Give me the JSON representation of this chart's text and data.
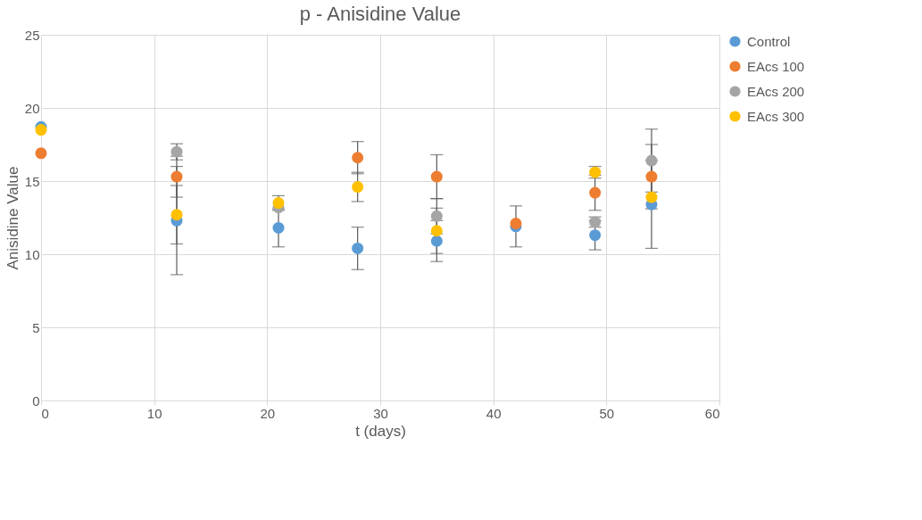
{
  "chart_data": {
    "type": "scatter",
    "title": "p - Anisidine Value",
    "xlabel": "t (days)",
    "ylabel": "Anisidine Value",
    "x": [
      0,
      12,
      21,
      28,
      35,
      42,
      49,
      54
    ],
    "xlim": [
      0,
      60
    ],
    "xticks": [
      0,
      10,
      20,
      30,
      40,
      50,
      60
    ],
    "ylim": [
      0,
      25
    ],
    "yticks": [
      0,
      5,
      10,
      15,
      20,
      25
    ],
    "grid": true,
    "legend": "right",
    "marker": "circle",
    "series": [
      {
        "name": "Control",
        "color": "#5b9bd5",
        "values": [
          18.7,
          12.3,
          11.8,
          10.4,
          10.9,
          11.9,
          11.3,
          13.4
        ],
        "errors": [
          null,
          3.7,
          1.3,
          1.45,
          1.4,
          1.4,
          1.0,
          3.0
        ]
      },
      {
        "name": "EAcs 100",
        "color": "#ed7d31",
        "values": [
          16.9,
          15.3,
          null,
          16.6,
          15.3,
          12.1,
          14.2,
          15.3
        ],
        "errors": [
          null,
          1.4,
          null,
          1.1,
          1.5,
          null,
          1.2,
          2.2
        ]
      },
      {
        "name": "EAcs 200",
        "color": "#a5a5a5",
        "values": [
          null,
          17.0,
          13.2,
          null,
          12.6,
          null,
          12.2,
          16.4
        ],
        "errors": [
          null,
          0.55,
          null,
          null,
          1.2,
          null,
          0.35,
          2.15
        ]
      },
      {
        "name": "EAcs 300",
        "color": "#ffc000",
        "values": [
          18.5,
          12.7,
          13.5,
          14.6,
          11.6,
          null,
          15.6,
          13.9
        ],
        "errors": [
          null,
          2.0,
          0.5,
          1.0,
          1.55,
          null,
          0.4,
          null
        ]
      }
    ]
  }
}
